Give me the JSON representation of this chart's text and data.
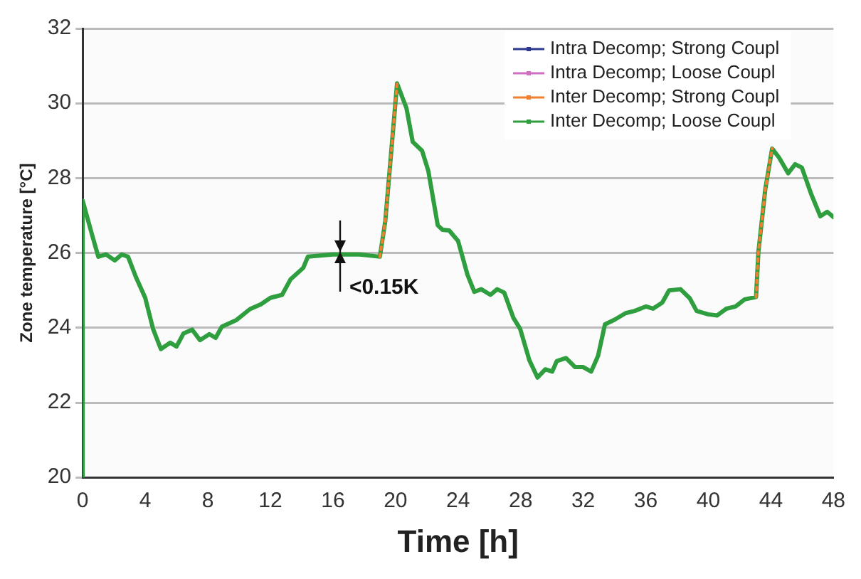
{
  "chart_data": {
    "type": "line",
    "xlabel": "Time [h]",
    "ylabel": "Zone temperature [°C]",
    "x": [
      0,
      0,
      0.59,
      1.0,
      1.5,
      2.05,
      2.5,
      2.9,
      3.4,
      4.0,
      4.5,
      5.0,
      5.6,
      6.0,
      6.45,
      7.0,
      7.5,
      8.1,
      8.5,
      8.9,
      9.8,
      10.7,
      11.4,
      12.0,
      12.75,
      13.3,
      14.1,
      14.4,
      16.0,
      17.7,
      19.0,
      19.35,
      20.1,
      20.7,
      21.1,
      21.7,
      22.1,
      22.7,
      23.0,
      23.43,
      24.0,
      24.6,
      25.04,
      25.48,
      26.07,
      26.5,
      26.95,
      27.53,
      27.97,
      28.56,
      29.08,
      29.58,
      30.02,
      30.31,
      30.9,
      31.48,
      32.0,
      32.51,
      32.95,
      33.39,
      33.98,
      34.71,
      35.29,
      36.02,
      36.46,
      37.05,
      37.49,
      38.22,
      38.81,
      39.25,
      39.98,
      40.57,
      41.15,
      41.74,
      42.32,
      43.05,
      43.2,
      43.64,
      44.08,
      44.52,
      45.1,
      45.55,
      45.98,
      46.57,
      47.16,
      47.6,
      48
    ],
    "series": [
      {
        "name": "Intra Decomp; Strong Coupl",
        "color": "#2b3a8f",
        "values": [
          null,
          null,
          null,
          null,
          null,
          null,
          null,
          null,
          null,
          null,
          null,
          null,
          null,
          null,
          null,
          null,
          null,
          null,
          null,
          null,
          null,
          null,
          null,
          null,
          null,
          null,
          null,
          null,
          null,
          null,
          null,
          null,
          null,
          null,
          null,
          null,
          null,
          null,
          null,
          null,
          null,
          null,
          null,
          null,
          null,
          null,
          null,
          null,
          null,
          null,
          null,
          null,
          null,
          null,
          null,
          null,
          null,
          null,
          null,
          null,
          null,
          null,
          null,
          null,
          null,
          null,
          null,
          null,
          null,
          null,
          null,
          null,
          null,
          null,
          null,
          null,
          null,
          null,
          null,
          null,
          null,
          null,
          null,
          null,
          null,
          null,
          null
        ]
      },
      {
        "name": "Intra Decomp; Loose Coupl",
        "color": "#d070c0",
        "values": [
          null,
          null,
          null,
          null,
          null,
          null,
          null,
          null,
          null,
          null,
          null,
          null,
          null,
          null,
          null,
          null,
          null,
          null,
          null,
          null,
          null,
          null,
          null,
          null,
          null,
          null,
          null,
          null,
          null,
          null,
          null,
          null,
          null,
          null,
          null,
          null,
          null,
          null,
          null,
          null,
          null,
          null,
          null,
          null,
          null,
          null,
          null,
          null,
          null,
          null,
          null,
          null,
          null,
          null,
          null,
          null,
          null,
          null,
          null,
          null,
          null,
          null,
          null,
          null,
          null,
          null,
          null,
          null,
          null,
          null,
          null,
          null,
          null,
          null,
          null,
          null,
          null,
          null,
          null,
          null,
          null,
          null,
          null,
          null,
          null,
          null,
          null
        ]
      },
      {
        "name": "Inter Decomp; Strong Coupl",
        "color": "#f08030",
        "line_style": "dotted",
        "values": [
          null,
          null,
          null,
          null,
          null,
          null,
          null,
          null,
          null,
          null,
          null,
          null,
          null,
          null,
          null,
          null,
          null,
          null,
          null,
          null,
          null,
          null,
          null,
          null,
          null,
          null,
          null,
          null,
          null,
          null,
          25.9,
          26.86,
          30.53,
          null,
          null,
          null,
          null,
          null,
          null,
          null,
          null,
          null,
          null,
          null,
          null,
          null,
          null,
          null,
          null,
          null,
          null,
          null,
          null,
          null,
          null,
          null,
          null,
          null,
          null,
          null,
          null,
          null,
          null,
          null,
          null,
          null,
          null,
          null,
          null,
          null,
          null,
          null,
          null,
          null,
          null,
          24.82,
          26.02,
          27.7,
          28.79,
          null,
          null,
          null,
          null,
          null,
          null,
          null,
          null
        ]
      },
      {
        "name": "Inter Decomp; Loose Coupl",
        "color": "#2e9e3e",
        "values": [
          20,
          27.4,
          26.5,
          25.9,
          25.96,
          25.8,
          25.96,
          25.9,
          25.36,
          24.8,
          23.97,
          23.43,
          23.6,
          23.5,
          23.85,
          23.95,
          23.67,
          23.83,
          23.73,
          24.03,
          24.2,
          24.5,
          24.63,
          24.8,
          24.88,
          25.3,
          25.6,
          25.9,
          25.96,
          25.96,
          25.9,
          26.86,
          30.53,
          29.87,
          28.97,
          28.73,
          28.19,
          26.74,
          26.62,
          26.6,
          26.32,
          25.42,
          24.96,
          25.03,
          24.88,
          25.03,
          24.94,
          24.27,
          23.97,
          23.13,
          22.67,
          22.89,
          22.83,
          23.11,
          23.19,
          22.95,
          22.95,
          22.83,
          23.25,
          24.09,
          24.21,
          24.39,
          24.45,
          24.57,
          24.51,
          24.67,
          25.0,
          25.03,
          24.79,
          24.45,
          24.36,
          24.33,
          24.51,
          24.57,
          24.76,
          24.82,
          26.02,
          27.7,
          28.79,
          28.55,
          28.13,
          28.37,
          28.28,
          27.58,
          26.98,
          27.1,
          26.96
        ]
      }
    ],
    "xlim": [
      0,
      48
    ],
    "xticks": [
      0,
      4,
      8,
      12,
      16,
      20,
      24,
      28,
      32,
      36,
      40,
      44,
      48
    ],
    "ylim": [
      20,
      32
    ],
    "yticks": [
      20,
      22,
      24,
      26,
      28,
      30,
      32
    ],
    "grid": "y",
    "legend": "top right",
    "line_style": "solid",
    "annotations": [
      {
        "text": "<0.15K",
        "x": 16.5,
        "y": 25.9
      }
    ]
  }
}
